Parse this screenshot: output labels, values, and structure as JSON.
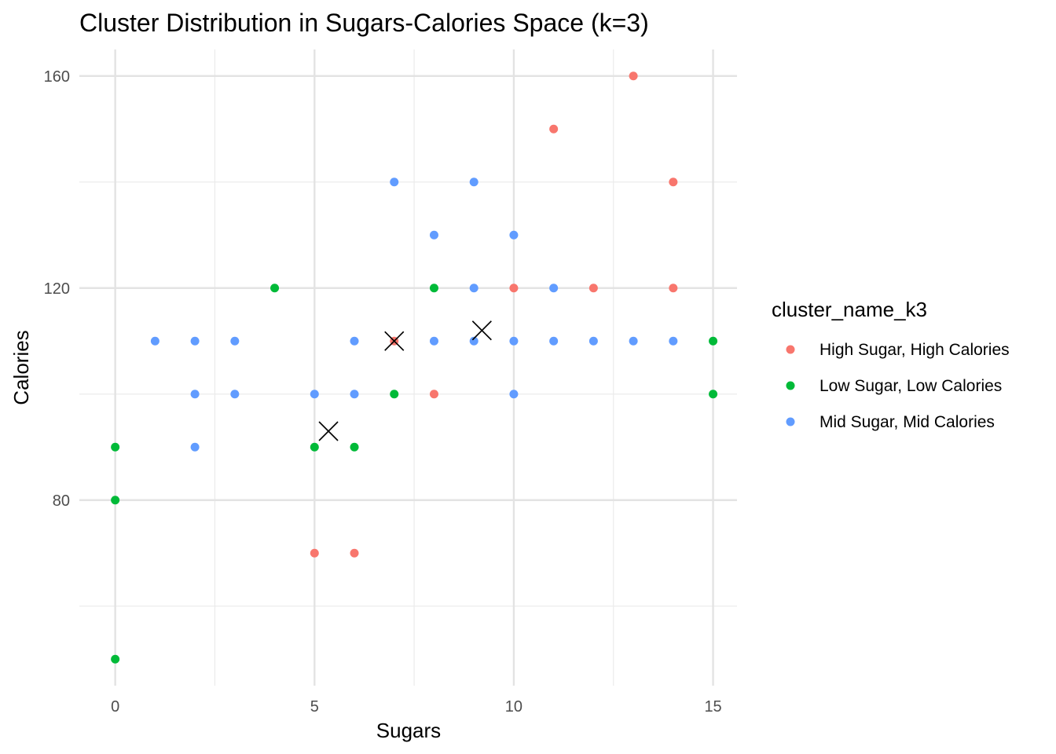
{
  "chart_data": {
    "type": "scatter",
    "title": "Cluster Distribution in Sugars-Calories Space (k=3)",
    "xlabel": "Sugars",
    "ylabel": "Calories",
    "xlim": [
      -0.9,
      15.6
    ],
    "ylim": [
      45,
      165
    ],
    "x_ticks": [
      0,
      5,
      10,
      15
    ],
    "y_ticks": [
      80,
      120,
      160
    ],
    "grid": true,
    "legend": {
      "title": "cluster_name_k3",
      "placement": "right"
    },
    "series": [
      {
        "name": "High Sugar, High Calories",
        "color": "#F8766D",
        "points": [
          [
            13,
            160
          ],
          [
            11,
            150
          ],
          [
            14,
            140
          ],
          [
            10,
            120
          ],
          [
            12,
            120
          ],
          [
            14,
            120
          ],
          [
            7,
            110
          ],
          [
            8,
            100
          ],
          [
            5,
            70
          ],
          [
            6,
            70
          ]
        ]
      },
      {
        "name": "Low Sugar, Low Calories",
        "color": "#00BA38",
        "points": [
          [
            4,
            120
          ],
          [
            8,
            120
          ],
          [
            15,
            110
          ],
          [
            7,
            100
          ],
          [
            15,
            100
          ],
          [
            0,
            90
          ],
          [
            5,
            90
          ],
          [
            6,
            90
          ],
          [
            0,
            80
          ],
          [
            0,
            50
          ]
        ]
      },
      {
        "name": "Mid Sugar, Mid Calories",
        "color": "#619CFF",
        "points": [
          [
            7,
            140
          ],
          [
            9,
            140
          ],
          [
            8,
            130
          ],
          [
            10,
            130
          ],
          [
            9,
            120
          ],
          [
            11,
            120
          ],
          [
            1,
            110
          ],
          [
            2,
            110
          ],
          [
            3,
            110
          ],
          [
            6,
            110
          ],
          [
            8,
            110
          ],
          [
            9,
            110
          ],
          [
            10,
            110
          ],
          [
            11,
            110
          ],
          [
            12,
            110
          ],
          [
            13,
            110
          ],
          [
            14,
            110
          ],
          [
            2,
            100
          ],
          [
            3,
            100
          ],
          [
            5,
            100
          ],
          [
            6,
            100
          ],
          [
            10,
            100
          ],
          [
            2,
            90
          ]
        ]
      }
    ],
    "centroids": [
      [
        7.0,
        110
      ],
      [
        9.2,
        112
      ],
      [
        5.35,
        93
      ]
    ]
  }
}
